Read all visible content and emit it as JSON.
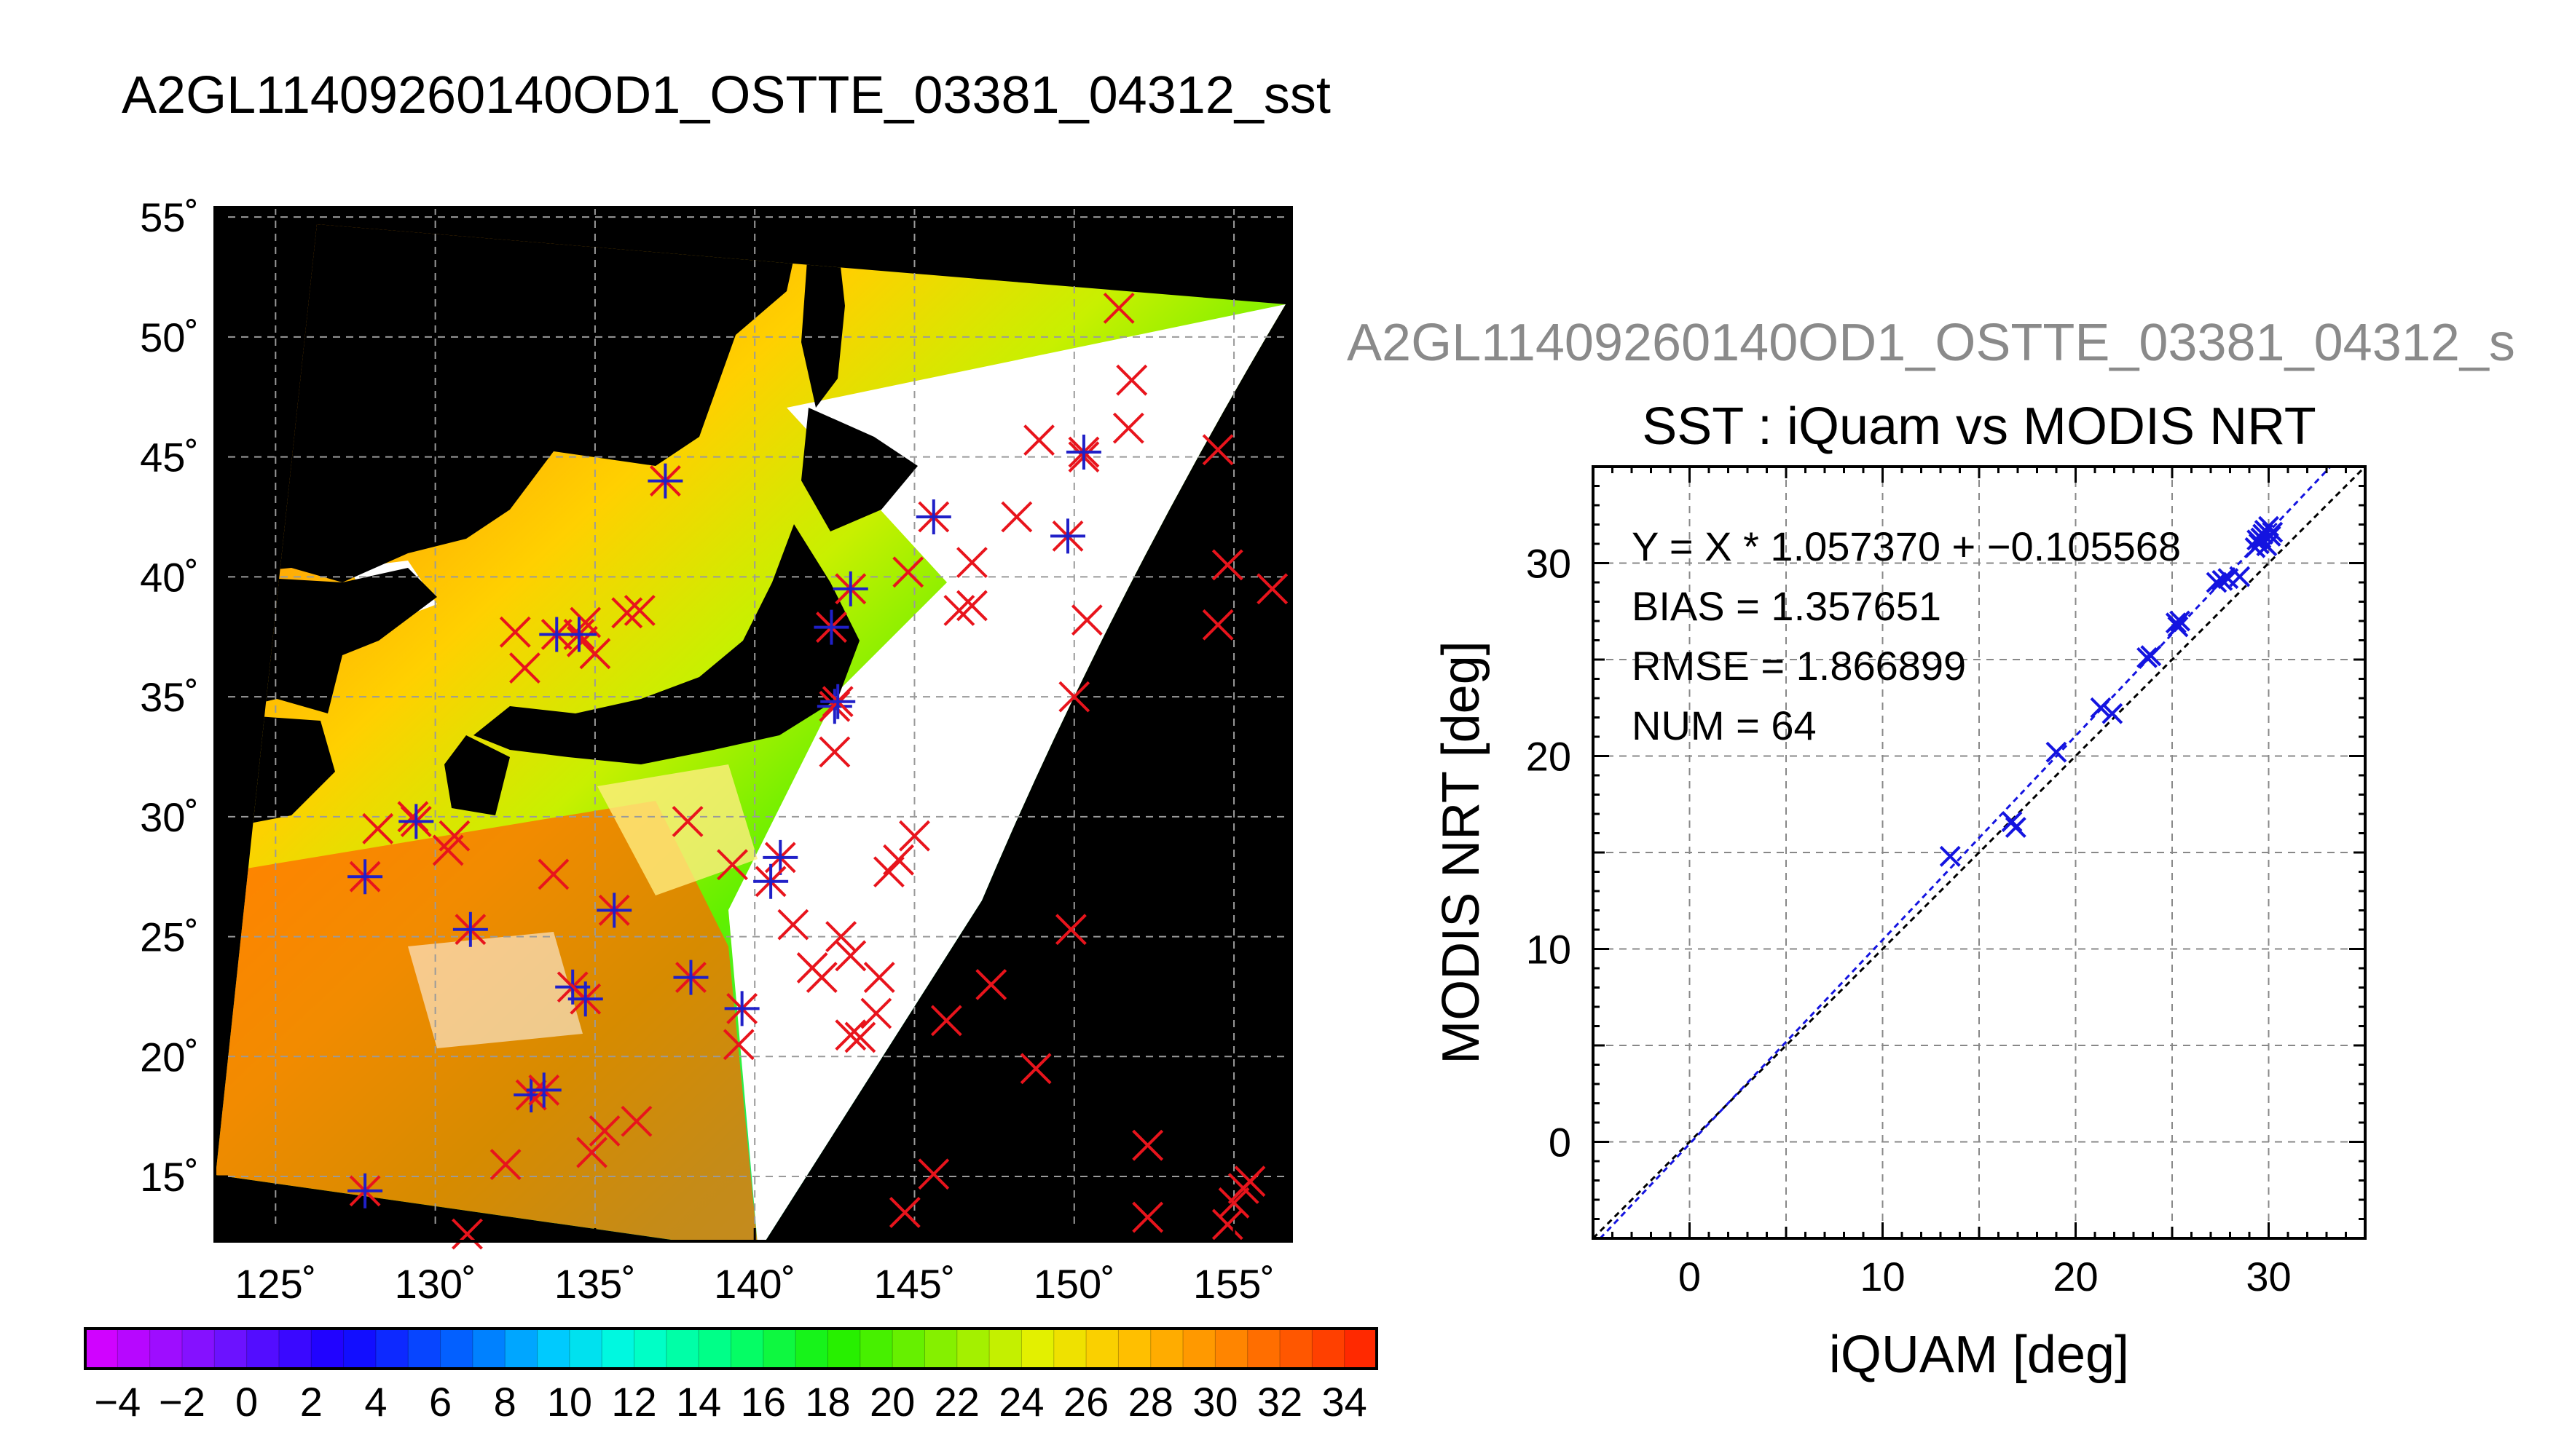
{
  "map_title": "A2GL11409260140OD1_OSTTE_03381_04312_sst",
  "scatter_heading": "A2GL11409260140OD1_OSTTE_03381_04312_s",
  "colors": {
    "iquam_marker": "#e8141c",
    "modis_marker": "#2020c8",
    "scatter_marker": "#1414e0",
    "land": "#000000",
    "cloud": "#ffffff"
  },
  "chart_data": [
    {
      "type": "heatmap",
      "title": "A2GL11409260140OD1_OSTTE_03381_04312_sst",
      "x_ticks": [
        "125˚",
        "130˚",
        "135˚",
        "140˚",
        "145˚",
        "150˚",
        "155˚"
      ],
      "x_tick_values": [
        125,
        130,
        135,
        140,
        145,
        150,
        155
      ],
      "y_ticks": [
        "15˚",
        "20˚",
        "25˚",
        "30˚",
        "35˚",
        "40˚",
        "45˚",
        "50˚",
        "55˚"
      ],
      "y_tick_values": [
        15,
        20,
        25,
        30,
        35,
        40,
        45,
        50,
        55
      ],
      "xlim": [
        123.1,
        156.8
      ],
      "ylim": [
        12.3,
        55.4
      ],
      "grid": true,
      "colorbar": {
        "min": -5,
        "max": 35,
        "tick_labels": [
          "−4",
          "−2",
          "0",
          "2",
          "4",
          "6",
          "8",
          "10",
          "12",
          "14",
          "16",
          "18",
          "20",
          "22",
          "24",
          "26",
          "28",
          "30",
          "32",
          "34"
        ],
        "tick_values": [
          -4,
          -2,
          0,
          2,
          4,
          6,
          8,
          10,
          12,
          14,
          16,
          18,
          20,
          22,
          24,
          26,
          28,
          30,
          32,
          34
        ]
      },
      "markers_iquam_x": [
        [
          151.4,
          51.2
        ],
        [
          151.8,
          48.2
        ],
        [
          151.7,
          46.2
        ],
        [
          148.9,
          45.7
        ],
        [
          150.3,
          45.0
        ],
        [
          148.2,
          42.5
        ],
        [
          146.8,
          40.6
        ],
        [
          144.8,
          40.2
        ],
        [
          146.4,
          38.6
        ],
        [
          146.8,
          38.8
        ],
        [
          150.4,
          38.2
        ],
        [
          150.0,
          35.0
        ],
        [
          154.5,
          45.3
        ],
        [
          154.8,
          40.5
        ],
        [
          156.2,
          39.5
        ],
        [
          154.5,
          38.0
        ],
        [
          132.5,
          37.7
        ],
        [
          132.8,
          36.2
        ],
        [
          134.6,
          37.3
        ],
        [
          134.7,
          38.1
        ],
        [
          135.0,
          36.8
        ],
        [
          136.0,
          38.5
        ],
        [
          136.4,
          38.6
        ],
        [
          142.5,
          32.7
        ],
        [
          129.3,
          30.0
        ],
        [
          128.2,
          29.5
        ],
        [
          130.6,
          29.2
        ],
        [
          130.4,
          28.6
        ],
        [
          133.7,
          27.6
        ],
        [
          137.9,
          29.8
        ],
        [
          139.3,
          28.0
        ],
        [
          141.2,
          25.5
        ],
        [
          141.8,
          23.7
        ],
        [
          142.1,
          23.3
        ],
        [
          142.7,
          25.0
        ],
        [
          143.0,
          24.2
        ],
        [
          143.9,
          23.3
        ],
        [
          144.2,
          27.7
        ],
        [
          144.5,
          28.2
        ],
        [
          145.0,
          29.2
        ],
        [
          148.8,
          19.5
        ],
        [
          147.4,
          23.0
        ],
        [
          146.0,
          21.5
        ],
        [
          143.3,
          20.8
        ],
        [
          143.0,
          20.9
        ],
        [
          143.8,
          21.8
        ],
        [
          139.5,
          20.5
        ],
        [
          136.3,
          17.3
        ],
        [
          134.9,
          16.0
        ],
        [
          135.3,
          16.9
        ],
        [
          132.2,
          15.5
        ],
        [
          131.0,
          12.6
        ],
        [
          149.9,
          25.3
        ],
        [
          152.3,
          16.3
        ],
        [
          152.3,
          13.3
        ],
        [
          144.7,
          13.5
        ],
        [
          145.6,
          15.1
        ],
        [
          154.8,
          13.0
        ],
        [
          155.3,
          14.5
        ],
        [
          155.5,
          14.8
        ],
        [
          155.0,
          13.9
        ]
      ],
      "markers_modis_star": [
        [
          137.2,
          44.0
        ],
        [
          145.6,
          42.5
        ],
        [
          149.8,
          41.7
        ],
        [
          150.3,
          45.2
        ],
        [
          142.4,
          37.9
        ],
        [
          143.0,
          39.5
        ],
        [
          142.5,
          34.6
        ],
        [
          142.6,
          34.8
        ],
        [
          133.8,
          37.6
        ],
        [
          134.5,
          37.6
        ],
        [
          127.8,
          27.5
        ],
        [
          129.4,
          29.8
        ],
        [
          131.1,
          25.3
        ],
        [
          135.6,
          26.1
        ],
        [
          140.8,
          28.3
        ],
        [
          140.5,
          27.3
        ],
        [
          138.0,
          23.3
        ],
        [
          139.6,
          22.0
        ],
        [
          134.3,
          22.9
        ],
        [
          134.7,
          22.4
        ],
        [
          133.0,
          18.4
        ],
        [
          133.4,
          18.6
        ],
        [
          127.8,
          14.4
        ]
      ]
    },
    {
      "type": "scatter",
      "title": "SST : iQuam vs MODIS NRT",
      "xlabel": "iQUAM [deg]",
      "ylabel": "MODIS NRT [deg]",
      "xlim": [
        -5,
        35
      ],
      "ylim": [
        -5,
        35
      ],
      "x_ticks": [
        "0",
        "10",
        "20",
        "30"
      ],
      "x_tick_values": [
        0,
        10,
        20,
        30
      ],
      "y_ticks": [
        "0",
        "10",
        "20",
        "30"
      ],
      "y_tick_values": [
        0,
        10,
        20,
        30
      ],
      "grid": true,
      "annotations": [
        "Y = X * 1.057370 + −0.105568",
        "BIAS = 1.357651",
        "RMSE = 1.866899",
        "NUM = 64"
      ],
      "fit": {
        "slope": 1.05737,
        "intercept": -0.105568
      },
      "one_to_one": true,
      "x": [
        13.5,
        16.7,
        16.9,
        19.0,
        21.3,
        21.9,
        23.7,
        23.9,
        25.2,
        25.4,
        25.3,
        27.3,
        27.6,
        27.9,
        28.5,
        29.3,
        29.5,
        29.6,
        29.7,
        29.8,
        30.0,
        30.2,
        29.4,
        29.9,
        30.1
      ],
      "y": [
        14.8,
        16.6,
        16.3,
        20.2,
        22.5,
        22.2,
        25.1,
        25.2,
        26.9,
        27.0,
        26.7,
        29.0,
        29.1,
        29.2,
        29.3,
        30.8,
        31.0,
        31.3,
        31.5,
        31.7,
        31.9,
        31.6,
        31.2,
        30.9,
        31.4
      ]
    }
  ]
}
